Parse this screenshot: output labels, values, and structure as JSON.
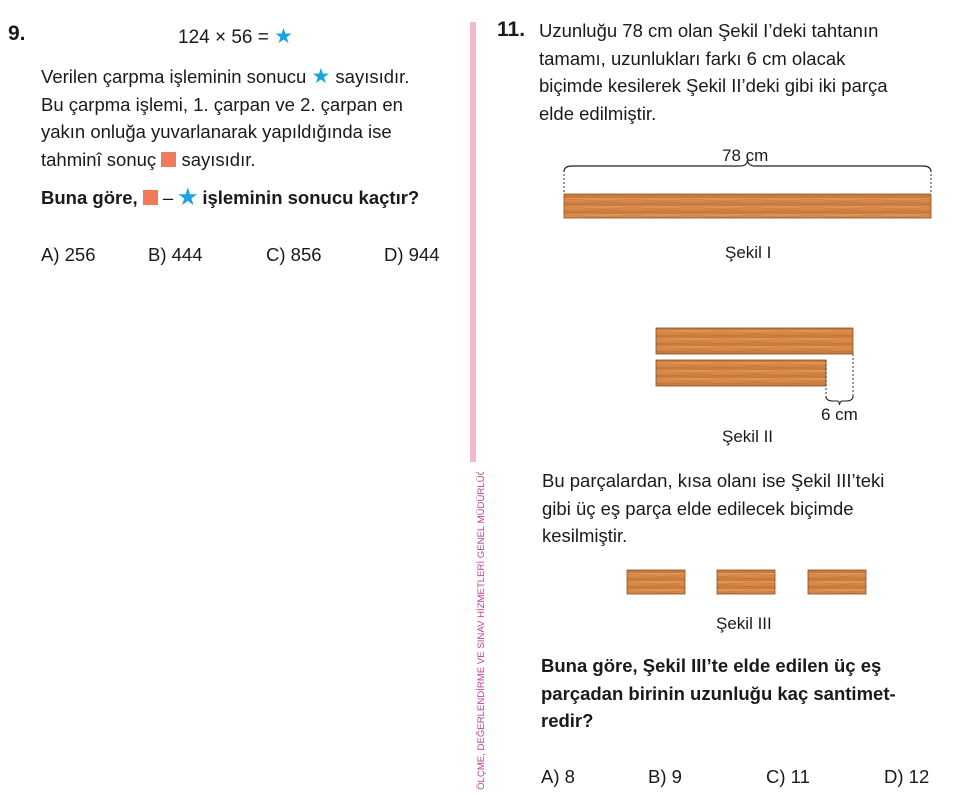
{
  "q9": {
    "number": "9.",
    "equation_left": "124 × 56 =",
    "star_symbol": "★",
    "lines": [
      "Verilen çarpma işleminin sonucu",
      "sayısıdır.",
      "Bu çarpma işlemi, 1. çarpan ve 2. çarpan en",
      "yakın onluğa yuvarlanarak yapıldığında ise",
      "tahminî sonuç",
      "sayısıdır."
    ],
    "question_prefix": "Buna göre,",
    "question_minus": "–",
    "question_suffix": "işleminin sonucu kaçtır?",
    "options": [
      "A) 256",
      "B) 444",
      "C) 856",
      "D) 944"
    ]
  },
  "side_banner": "ÖLÇME, DEĞERLENDİRME VE SINAV HİZMETLERİ GENEL MÜDÜRLÜĞÜ",
  "q11": {
    "number": "11.",
    "intro_lines": [
      "Uzunluğu 78 cm olan Şekil I’deki tahtanın",
      "tamamı, uzunlukları farkı 6 cm olacak",
      "biçimde kesilerek Şekil II’deki gibi iki parça",
      "elde edilmiştir."
    ],
    "fig1_label": "78 cm",
    "fig1_caption": "Şekil I",
    "fig2_label": "6 cm",
    "fig2_caption": "Şekil II",
    "middle_lines": [
      "Bu parçalardan, kısa olanı ise Şekil III’teki",
      "gibi üç eş parça elde edilecek biçimde",
      "kesilmiştir."
    ],
    "fig3_caption": "Şekil III",
    "question_lines": [
      "Buna göre, Şekil III’te elde edilen üç eş",
      "parçadan birinin uzunluğu kaç santimet-",
      "redir?"
    ],
    "options": [
      "A) 8",
      "B) 9",
      "C) 11",
      "D) 12"
    ]
  },
  "colors": {
    "wood": "#d58a4a",
    "wood_dark": "#b86a2e",
    "star": "#1aa3e0",
    "square": "#f07b5a",
    "divider": "#f2b8cf",
    "banner_text": "#c2399a"
  }
}
